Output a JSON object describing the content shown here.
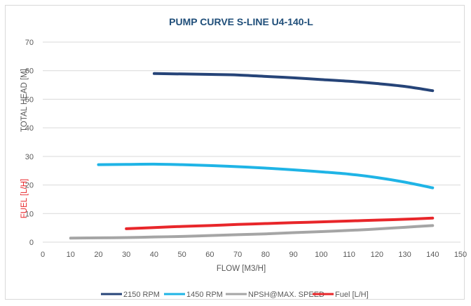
{
  "chart_data": {
    "type": "line",
    "title": "PUMP CURVE S-LINE U4-140-L",
    "xlabel": "FLOW [M3/H]",
    "ylabel": "TOTAL HEAD [M]",
    "ylabel_secondary": "FUEL [L/H]",
    "xlim": [
      0,
      150
    ],
    "ylim": [
      0,
      70
    ],
    "x_ticks": [
      0,
      10,
      20,
      30,
      40,
      50,
      60,
      70,
      80,
      90,
      100,
      110,
      120,
      130,
      140,
      150
    ],
    "y_ticks": [
      0,
      10,
      20,
      30,
      40,
      50,
      60,
      70
    ],
    "grid": true,
    "legend_position": "bottom",
    "series": [
      {
        "name": "2150 RPM",
        "color": "#264478",
        "points": [
          [
            40,
            59.0
          ],
          [
            60,
            58.7
          ],
          [
            70,
            58.5
          ],
          [
            80,
            58.0
          ],
          [
            90,
            57.5
          ],
          [
            100,
            56.9
          ],
          [
            110,
            56.3
          ],
          [
            120,
            55.5
          ],
          [
            130,
            54.5
          ],
          [
            140,
            53.0
          ]
        ]
      },
      {
        "name": "1450 RPM",
        "color": "#1fb4e6",
        "points": [
          [
            20,
            27.1
          ],
          [
            30,
            27.2
          ],
          [
            40,
            27.3
          ],
          [
            50,
            27.1
          ],
          [
            60,
            26.8
          ],
          [
            70,
            26.4
          ],
          [
            80,
            25.9
          ],
          [
            90,
            25.3
          ],
          [
            100,
            24.6
          ],
          [
            110,
            23.8
          ],
          [
            120,
            22.6
          ],
          [
            130,
            21.0
          ],
          [
            140,
            19.0
          ]
        ]
      },
      {
        "name": "NPSH@MAX. SPEED",
        "color": "#a5a5a5",
        "points": [
          [
            10,
            1.4
          ],
          [
            20,
            1.5
          ],
          [
            30,
            1.6
          ],
          [
            40,
            1.8
          ],
          [
            50,
            2.0
          ],
          [
            60,
            2.3
          ],
          [
            70,
            2.6
          ],
          [
            80,
            2.9
          ],
          [
            90,
            3.3
          ],
          [
            100,
            3.7
          ],
          [
            110,
            4.1
          ],
          [
            120,
            4.6
          ],
          [
            130,
            5.2
          ],
          [
            140,
            5.8
          ]
        ]
      },
      {
        "name": "Fuel [L/H]",
        "color": "#e8262a",
        "points": [
          [
            30,
            4.7
          ],
          [
            40,
            5.1
          ],
          [
            50,
            5.5
          ],
          [
            60,
            5.8
          ],
          [
            70,
            6.2
          ],
          [
            80,
            6.5
          ],
          [
            90,
            6.8
          ],
          [
            100,
            7.1
          ],
          [
            110,
            7.4
          ],
          [
            120,
            7.7
          ],
          [
            130,
            8.0
          ],
          [
            140,
            8.4
          ]
        ]
      }
    ]
  }
}
